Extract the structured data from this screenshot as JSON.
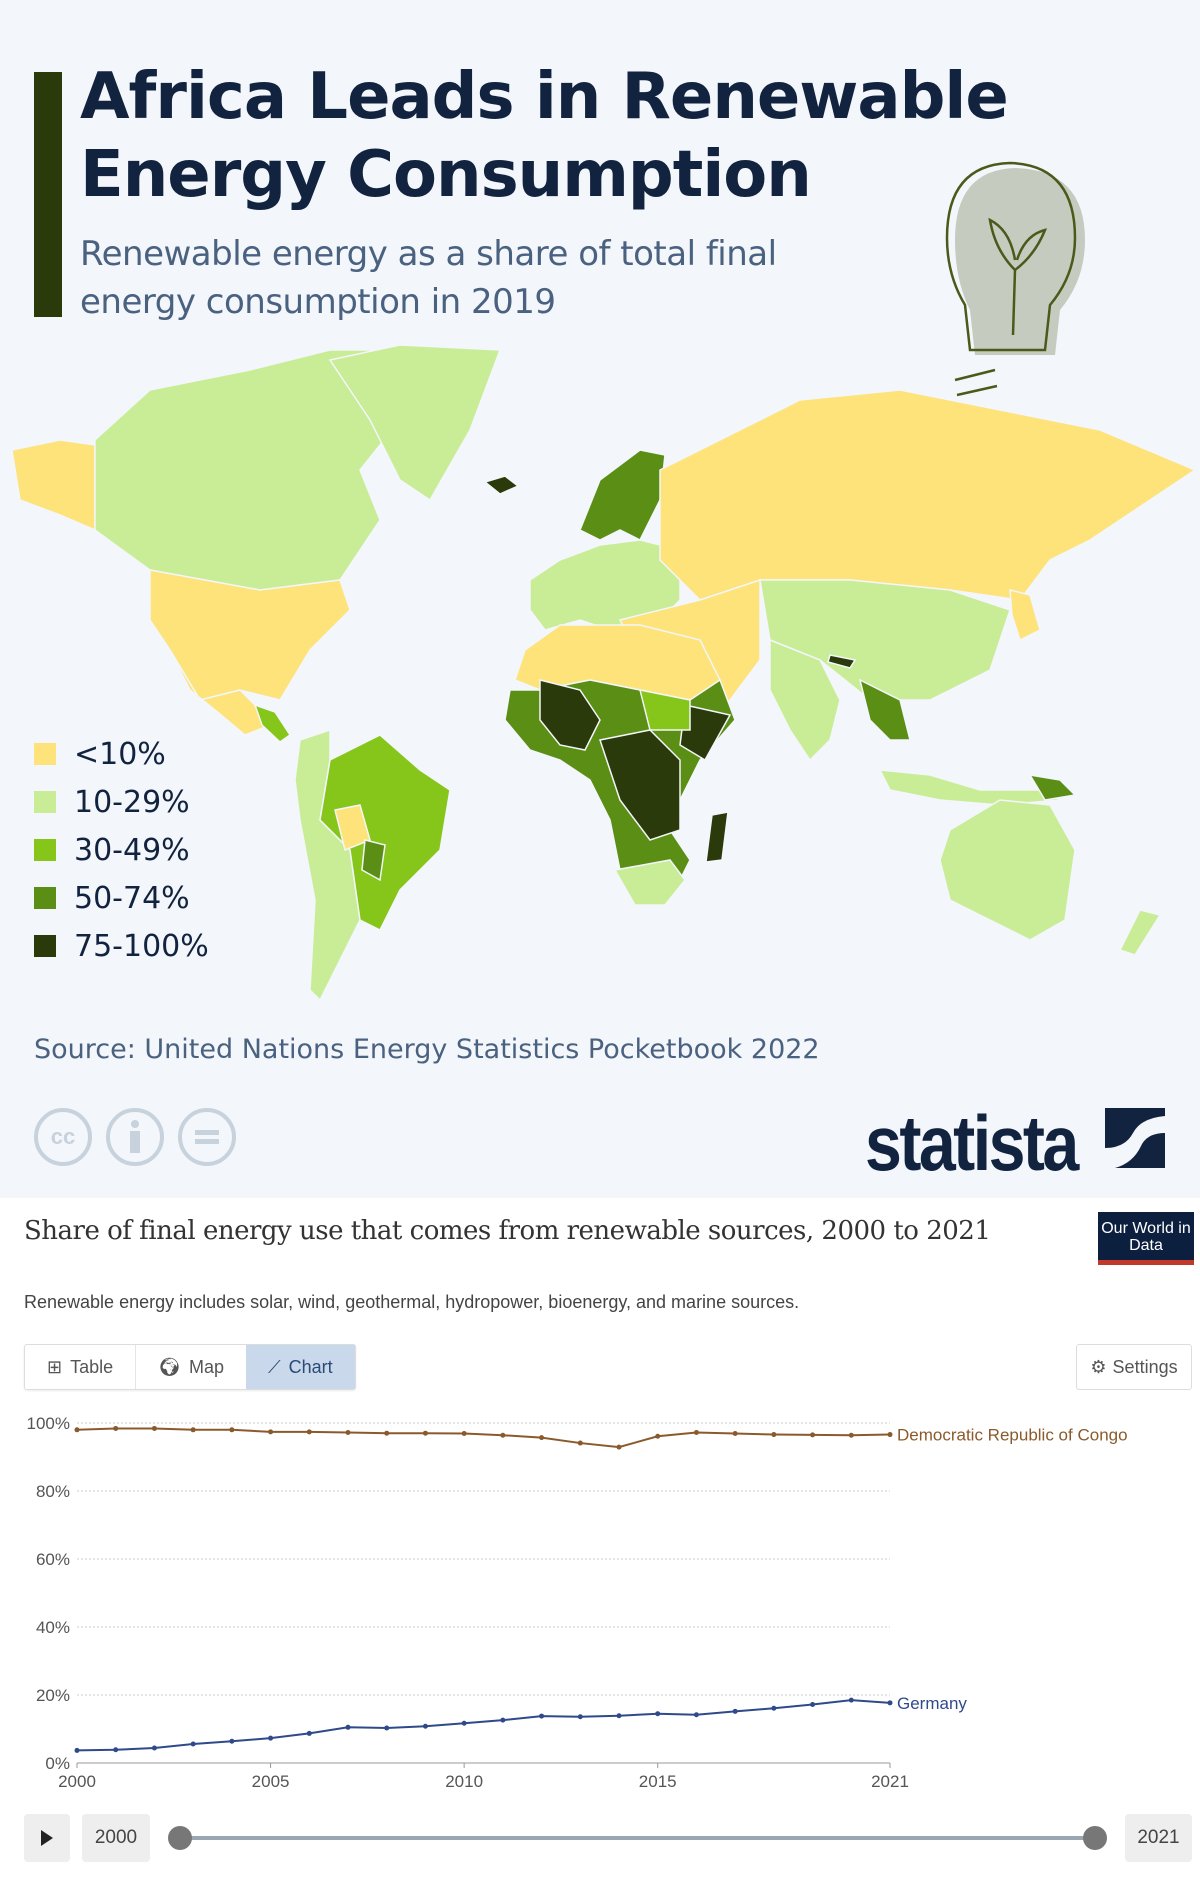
{
  "infographic": {
    "title": "Africa Leads in Renewable Energy Consumption",
    "subtitle": "Renewable energy as a share of total final energy consumption in 2019",
    "legend": [
      {
        "label": "<10%",
        "color": "#fde37a"
      },
      {
        "label": "10-29%",
        "color": "#c9ec96"
      },
      {
        "label": "30-49%",
        "color": "#86c61a"
      },
      {
        "label": "50-74%",
        "color": "#5a8e14"
      },
      {
        "label": "75-100%",
        "color": "#2b3a0b"
      }
    ],
    "source": "Source: United Nations Energy Statistics Pocketbook 2022",
    "license_icons": [
      "cc-icon",
      "attribution-icon",
      "no-derivatives-icon"
    ],
    "brand": "statista"
  },
  "owid": {
    "title": "Share of final energy use that comes from renewable sources, 2000 to 2021",
    "subtitle": "Renewable energy includes solar, wind, geothermal, hydropower, bioenergy, and marine sources.",
    "logo": "Our World in Data",
    "tabs": [
      {
        "label": "Table",
        "icon": "table-icon"
      },
      {
        "label": "Map",
        "icon": "globe-icon"
      },
      {
        "label": "Chart",
        "icon": "line-chart-icon",
        "selected": true
      }
    ],
    "settings_label": "Settings",
    "timeline": {
      "start": "2000",
      "end": "2021"
    }
  },
  "chart_data": {
    "type": "line",
    "x": [
      2000,
      2001,
      2002,
      2003,
      2004,
      2005,
      2006,
      2007,
      2008,
      2009,
      2010,
      2011,
      2012,
      2013,
      2014,
      2015,
      2016,
      2017,
      2018,
      2019,
      2020,
      2021
    ],
    "xticks": [
      "2000",
      "2005",
      "2010",
      "2015",
      "2021"
    ],
    "yticks": [
      "0%",
      "20%",
      "40%",
      "60%",
      "80%",
      "100%"
    ],
    "ylim": [
      0,
      100
    ],
    "grid": true,
    "series": [
      {
        "name": "Democratic Republic of Congo",
        "color": "#8b5a2b",
        "values": [
          98.0,
          98.4,
          98.4,
          98.0,
          98.0,
          97.4,
          97.4,
          97.2,
          97.0,
          97.0,
          96.9,
          96.4,
          95.7,
          94.1,
          92.9,
          96.1,
          97.2,
          96.9,
          96.6,
          96.5,
          96.4,
          96.6
        ]
      },
      {
        "name": "Germany",
        "color": "#2f4a8a",
        "values": [
          3.7,
          3.9,
          4.4,
          5.6,
          6.4,
          7.3,
          8.7,
          10.5,
          10.3,
          10.8,
          11.7,
          12.6,
          13.8,
          13.6,
          13.9,
          14.5,
          14.2,
          15.2,
          16.1,
          17.2,
          18.5,
          17.7
        ]
      }
    ]
  }
}
